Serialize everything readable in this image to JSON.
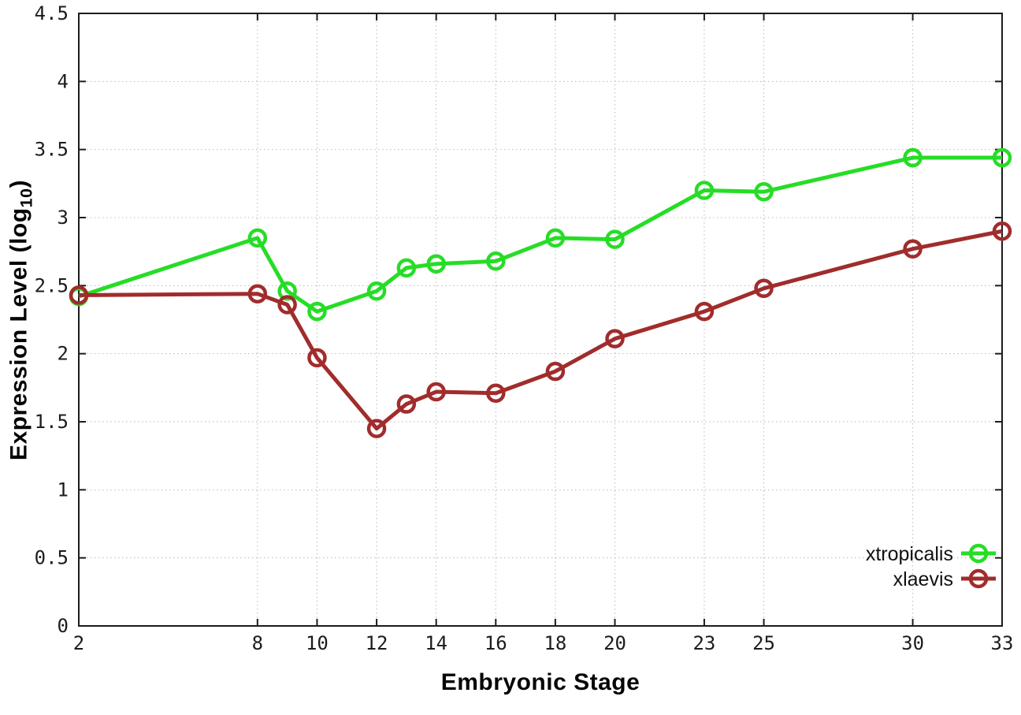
{
  "figure": {
    "background": "#ffffff",
    "y_axis_title": {
      "pre": "Expression Level (log",
      "sub": "10",
      "post": ")"
    },
    "x_axis_title": "Embryonic Stage"
  },
  "colors": {
    "xtropicalis": "#26dd26",
    "xlaevis": "#a12c2c",
    "axis": "#1c1c1c",
    "grid": "#b8b8b8"
  },
  "chart_data": {
    "type": "line",
    "title": "",
    "xlabel": "Embryonic Stage",
    "ylabel": "Expression Level (log10)",
    "xlim": [
      2,
      33
    ],
    "ylim": [
      0,
      4.5
    ],
    "grid": true,
    "marker": "open-circle",
    "legend_position": "bottom-right",
    "x_ticks": [
      2,
      8,
      10,
      12,
      14,
      16,
      18,
      20,
      23,
      25,
      30,
      33
    ],
    "x_tick_labels": [
      "2",
      "8",
      "10",
      "12",
      "14",
      "16",
      "18",
      "20",
      "23",
      "25",
      "30",
      "33"
    ],
    "y_ticks": [
      0,
      0.5,
      1,
      1.5,
      2,
      2.5,
      3,
      3.5,
      4,
      4.5
    ],
    "y_tick_labels": [
      "0",
      "0.5",
      "1",
      "1.5",
      "2",
      "2.5",
      "3",
      "3.5",
      "4",
      "4.5"
    ],
    "x": [
      2,
      8,
      9,
      10,
      12,
      13,
      14,
      16,
      18,
      20,
      23,
      25,
      30,
      33
    ],
    "series": [
      {
        "name": "xtropicalis",
        "color": "#26dd26",
        "values": [
          2.42,
          2.85,
          2.46,
          2.31,
          2.46,
          2.63,
          2.66,
          2.68,
          2.85,
          2.84,
          3.2,
          3.19,
          3.44,
          3.44
        ]
      },
      {
        "name": "xlaevis",
        "color": "#a12c2c",
        "values": [
          2.43,
          2.44,
          2.36,
          1.97,
          1.45,
          1.63,
          1.72,
          1.71,
          1.87,
          2.11,
          2.31,
          2.48,
          2.77,
          2.9
        ]
      }
    ]
  }
}
